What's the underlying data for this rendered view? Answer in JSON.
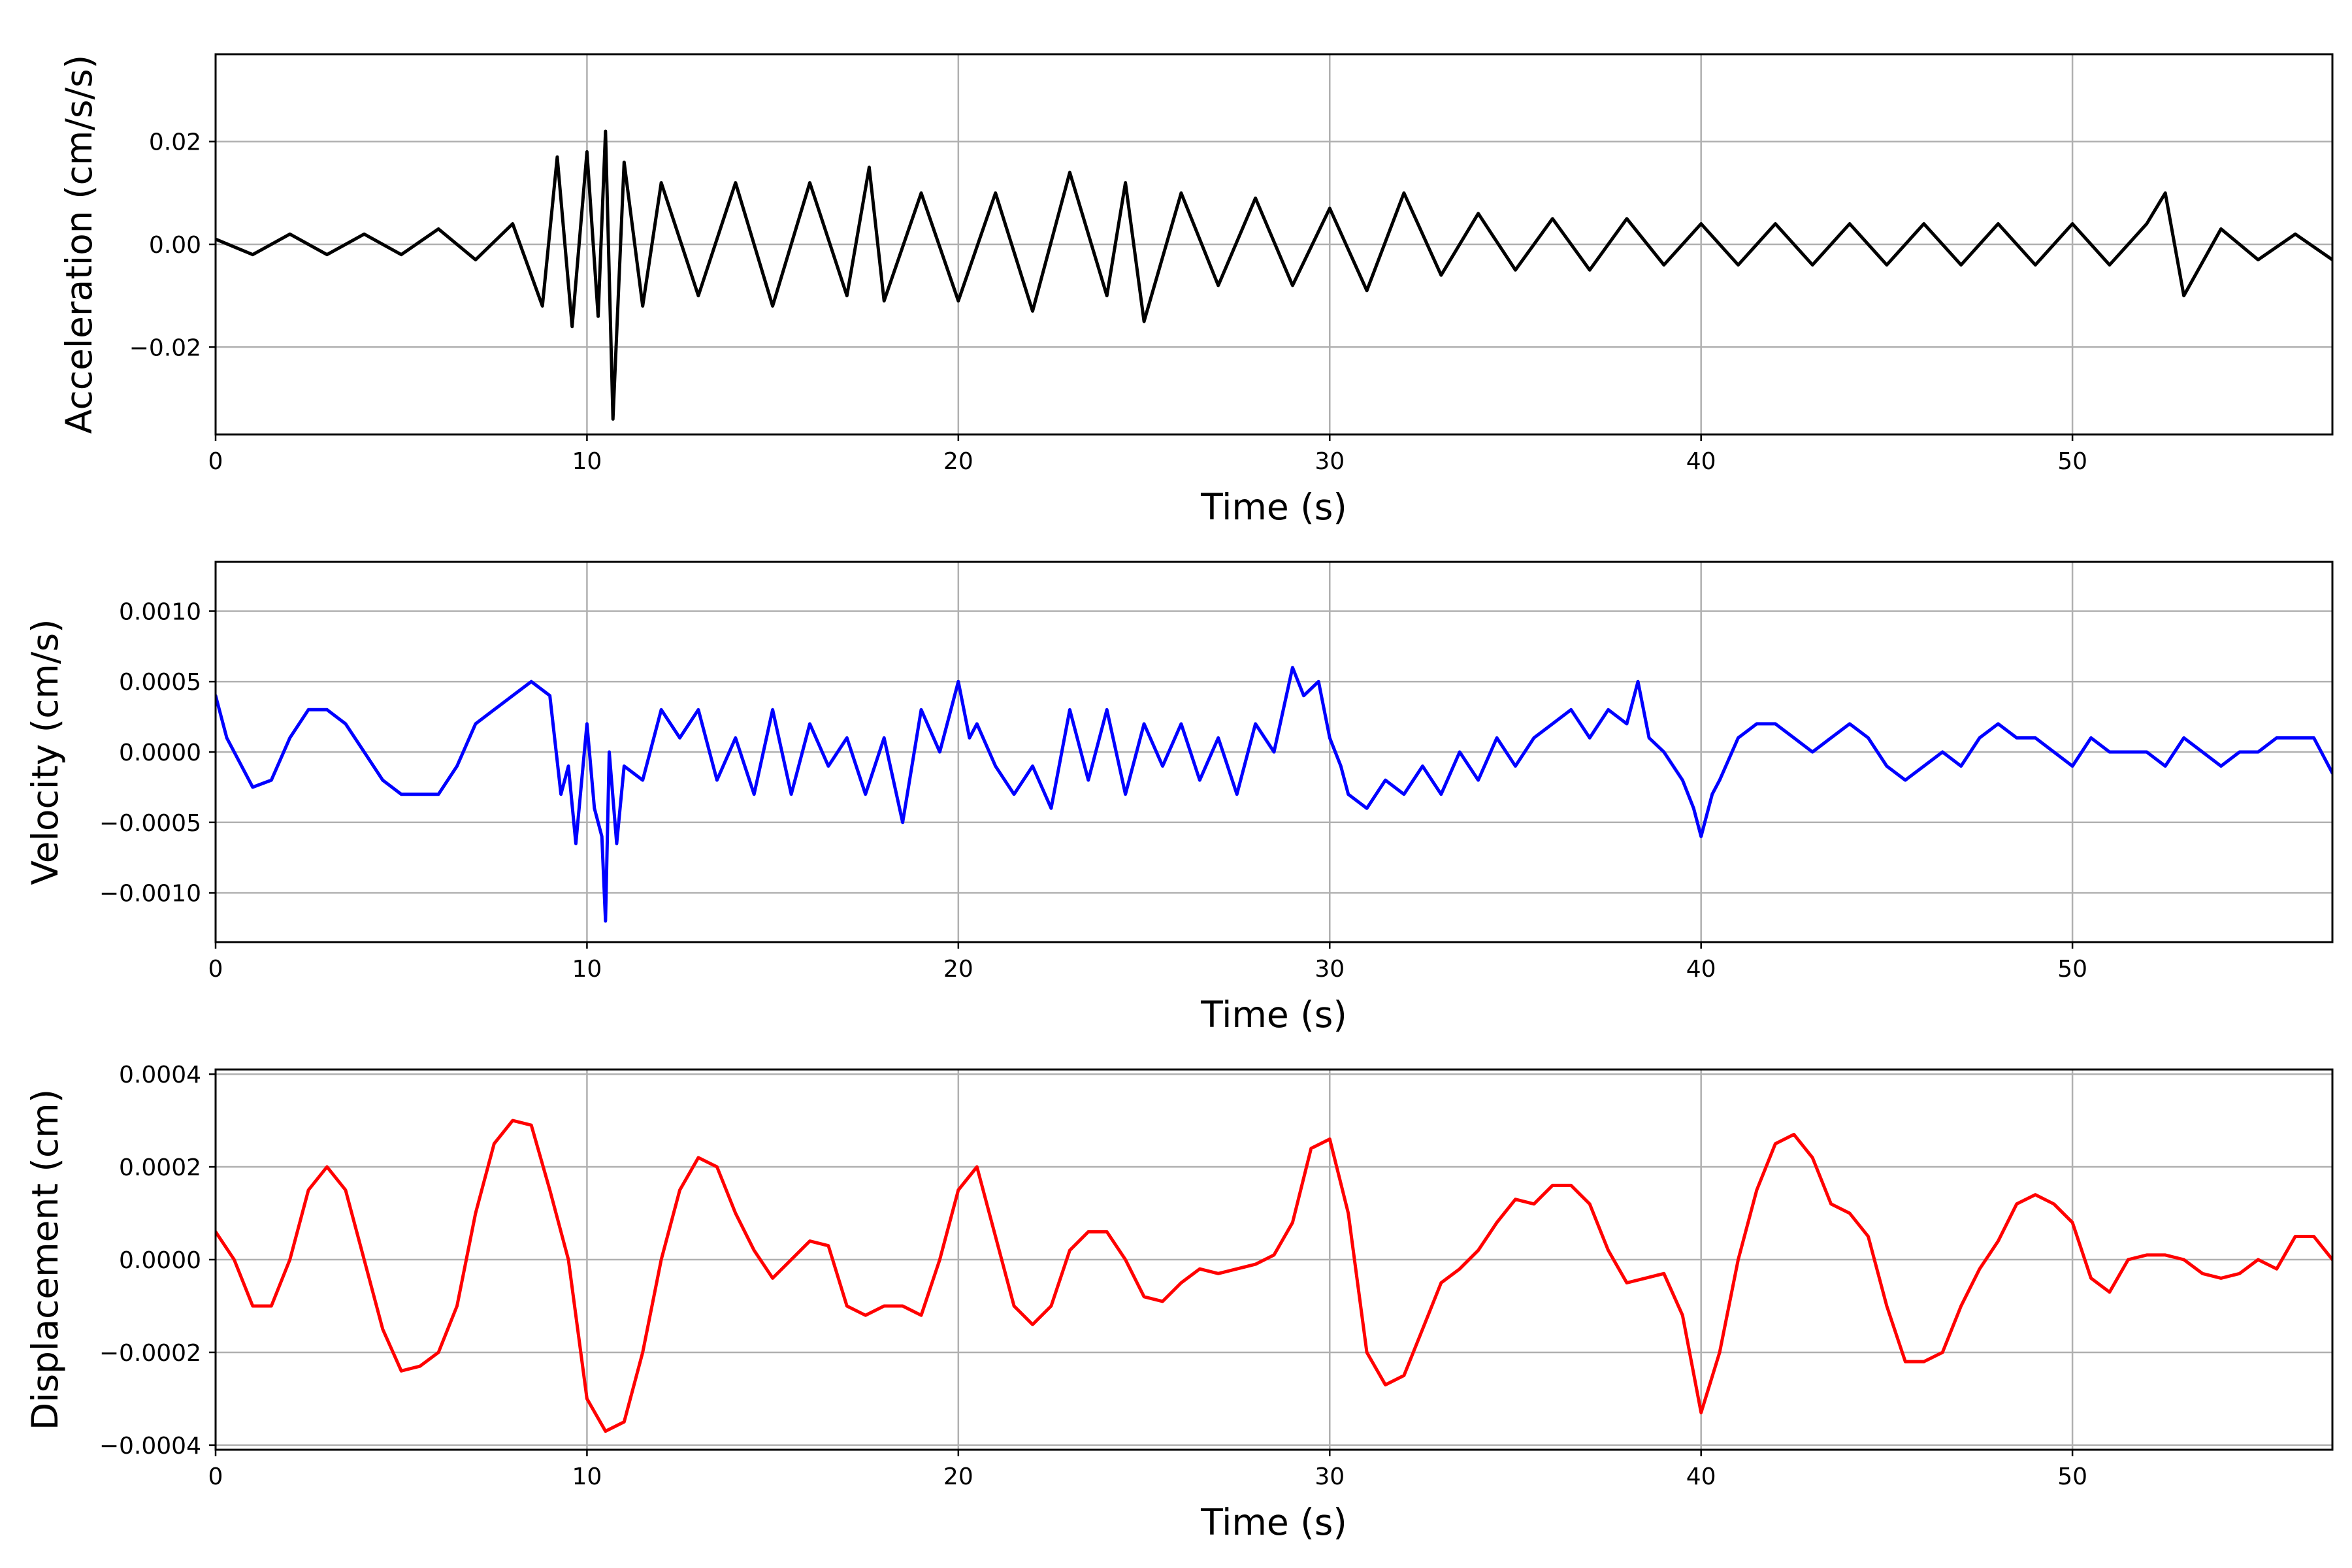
{
  "chart_data": [
    {
      "type": "line",
      "panel": "acceleration",
      "title": "",
      "xlabel": "Time (s)",
      "ylabel": "Acceleration (cm/s/s)",
      "xlim": [
        0,
        57
      ],
      "ylim": [
        -0.037,
        0.037
      ],
      "xticks": [
        0,
        10,
        20,
        30,
        40,
        50
      ],
      "xtick_labels": [
        "0",
        "10",
        "20",
        "30",
        "40",
        "50"
      ],
      "yticks": [
        -0.02,
        0.0,
        0.02
      ],
      "ytick_labels": [
        "−0.02",
        "0.00",
        "0.02"
      ],
      "grid": true,
      "color": "#000000",
      "series": [
        {
          "x": [
            0,
            1,
            2,
            3,
            4,
            5,
            6,
            7,
            8,
            8.8,
            9.2,
            9.6,
            10.0,
            10.3,
            10.5,
            10.7,
            11.0,
            11.5,
            12,
            13,
            14,
            15,
            16,
            17,
            17.6,
            18,
            19,
            20,
            21,
            22,
            23,
            24,
            24.5,
            25,
            26,
            27,
            28,
            29,
            30,
            31,
            32,
            33,
            34,
            35,
            36,
            37,
            38,
            39,
            40,
            41,
            42,
            43,
            44,
            45,
            46,
            47,
            48,
            49,
            50,
            51,
            52,
            52.5,
            53,
            54,
            55,
            56,
            57
          ],
          "y": [
            0.001,
            -0.002,
            0.002,
            -0.002,
            0.002,
            -0.002,
            0.003,
            -0.003,
            0.004,
            -0.012,
            0.017,
            -0.016,
            0.018,
            -0.014,
            0.022,
            -0.034,
            0.016,
            -0.012,
            0.012,
            -0.01,
            0.012,
            -0.012,
            0.012,
            -0.01,
            0.015,
            -0.011,
            0.01,
            -0.011,
            0.01,
            -0.013,
            0.014,
            -0.01,
            0.012,
            -0.015,
            0.01,
            -0.008,
            0.009,
            -0.008,
            0.007,
            -0.009,
            0.01,
            -0.006,
            0.006,
            -0.005,
            0.005,
            -0.005,
            0.005,
            -0.004,
            0.004,
            -0.004,
            0.004,
            -0.004,
            0.004,
            -0.004,
            0.004,
            -0.004,
            0.004,
            -0.004,
            0.004,
            -0.004,
            0.004,
            0.01,
            -0.01,
            0.003,
            -0.003,
            0.002,
            -0.003
          ]
        }
      ]
    },
    {
      "type": "line",
      "panel": "velocity",
      "title": "",
      "xlabel": "Time (s)",
      "ylabel": "Velocity (cm/s)",
      "xlim": [
        0,
        57
      ],
      "ylim": [
        -0.00135,
        0.00135
      ],
      "xticks": [
        0,
        10,
        20,
        30,
        40,
        50
      ],
      "xtick_labels": [
        "0",
        "10",
        "20",
        "30",
        "40",
        "50"
      ],
      "yticks": [
        -0.001,
        -0.0005,
        0.0,
        0.0005,
        0.001
      ],
      "ytick_labels": [
        "−0.0010",
        "−0.0005",
        "0.0000",
        "0.0005",
        "0.0010"
      ],
      "grid": true,
      "color": "#0000ff",
      "series": [
        {
          "x": [
            0,
            0.3,
            1,
            1.5,
            2,
            2.5,
            3,
            3.5,
            4,
            4.5,
            5,
            5.5,
            6,
            6.5,
            7,
            7.5,
            8,
            8.5,
            9,
            9.3,
            9.5,
            9.7,
            10.0,
            10.2,
            10.4,
            10.5,
            10.6,
            10.8,
            11.0,
            11.5,
            12,
            12.5,
            13,
            13.5,
            14,
            14.5,
            15,
            15.5,
            16,
            16.5,
            17,
            17.5,
            18,
            18.5,
            19,
            19.5,
            20,
            20.3,
            20.5,
            21,
            21.5,
            22,
            22.5,
            23,
            23.5,
            24,
            24.5,
            25,
            25.5,
            26,
            26.5,
            27,
            27.5,
            28,
            28.5,
            29,
            29.3,
            29.7,
            30,
            30.3,
            30.5,
            31,
            31.5,
            32,
            32.5,
            33,
            33.5,
            34,
            34.5,
            35,
            35.5,
            36,
            36.5,
            37,
            37.5,
            38,
            38.3,
            38.6,
            39,
            39.5,
            39.8,
            40,
            40.3,
            40.5,
            41,
            41.5,
            42,
            42.5,
            43,
            43.5,
            44,
            44.5,
            45,
            45.5,
            46,
            46.5,
            47,
            47.5,
            48,
            48.5,
            49,
            49.5,
            50,
            50.5,
            51,
            51.5,
            52,
            52.5,
            53,
            53.5,
            54,
            54.5,
            55,
            55.5,
            56,
            56.5,
            57
          ],
          "y": [
            0.0004,
            0.0001,
            -0.00025,
            -0.0002,
            0.0001,
            0.0003,
            0.0003,
            0.0002,
            0.0,
            -0.0002,
            -0.0003,
            -0.0003,
            -0.0003,
            -0.0001,
            0.0002,
            0.0003,
            0.0004,
            0.0005,
            0.0004,
            -0.0003,
            -0.0001,
            -0.00065,
            0.0002,
            -0.0004,
            -0.0006,
            -0.0012,
            0.0,
            -0.00065,
            -0.0001,
            -0.0002,
            0.0003,
            0.0001,
            0.0003,
            -0.0002,
            0.0001,
            -0.0003,
            0.0003,
            -0.0003,
            0.0002,
            -0.0001,
            0.0001,
            -0.0003,
            0.0001,
            -0.0005,
            0.0003,
            0.0,
            0.0005,
            0.0001,
            0.0002,
            -0.0001,
            -0.0003,
            -0.0001,
            -0.0004,
            0.0003,
            -0.0002,
            0.0003,
            -0.0003,
            0.0002,
            -0.0001,
            0.0002,
            -0.0002,
            0.0001,
            -0.0003,
            0.0002,
            0.0,
            0.0006,
            0.0004,
            0.0005,
            0.0001,
            -0.0001,
            -0.0003,
            -0.0004,
            -0.0002,
            -0.0003,
            -0.0001,
            -0.0003,
            0.0,
            -0.0002,
            0.0001,
            -0.0001,
            0.0001,
            0.0002,
            0.0003,
            0.0001,
            0.0003,
            0.0002,
            0.0005,
            0.0001,
            0.0,
            -0.0002,
            -0.0004,
            -0.0006,
            -0.0003,
            -0.0002,
            0.0001,
            0.0002,
            0.0002,
            0.0001,
            0.0,
            0.0001,
            0.0002,
            0.0001,
            -0.0001,
            -0.0002,
            -0.0001,
            0.0,
            -0.0001,
            0.0001,
            0.0002,
            0.0001,
            0.0001,
            0.0,
            -0.0001,
            0.0001,
            0.0,
            0.0,
            0.0,
            -0.0001,
            0.0001,
            0.0,
            -0.0001,
            0.0,
            0.0,
            0.0001,
            0.0001,
            0.0001,
            -0.00015
          ]
        }
      ]
    },
    {
      "type": "line",
      "panel": "displacement",
      "title": "",
      "xlabel": "Time (s)",
      "ylabel": "Displacement (cm)",
      "xlim": [
        0,
        57
      ],
      "ylim": [
        -0.00041,
        0.00041
      ],
      "xticks": [
        0,
        10,
        20,
        30,
        40,
        50
      ],
      "xtick_labels": [
        "0",
        "10",
        "20",
        "30",
        "40",
        "50"
      ],
      "yticks": [
        -0.0004,
        -0.0002,
        0.0,
        0.0002,
        0.0004
      ],
      "ytick_labels": [
        "−0.0004",
        "−0.0002",
        "0.0000",
        "0.0002",
        "0.0004"
      ],
      "grid": true,
      "color": "#ff0000",
      "series": [
        {
          "x": [
            0,
            0.5,
            1,
            1.5,
            2,
            2.5,
            3,
            3.5,
            4,
            4.5,
            5,
            5.5,
            6,
            6.5,
            7,
            7.5,
            8,
            8.5,
            9,
            9.5,
            10,
            10.5,
            11,
            11.5,
            12,
            12.5,
            13,
            13.5,
            14,
            14.5,
            15,
            15.5,
            16,
            16.5,
            17,
            17.5,
            18,
            18.5,
            19,
            19.5,
            20,
            20.5,
            21,
            21.5,
            22,
            22.5,
            23,
            23.5,
            24,
            24.5,
            25,
            25.5,
            26,
            26.5,
            27,
            27.5,
            28,
            28.5,
            29,
            29.5,
            30,
            30.5,
            31,
            31.5,
            32,
            32.5,
            33,
            33.5,
            34,
            34.5,
            35,
            35.5,
            36,
            36.5,
            37,
            37.5,
            38,
            38.5,
            39,
            39.5,
            40,
            40.5,
            41,
            41.5,
            42,
            42.5,
            43,
            43.5,
            44,
            44.5,
            45,
            45.5,
            46,
            46.5,
            47,
            47.5,
            48,
            48.5,
            49,
            49.5,
            50,
            50.5,
            51,
            51.5,
            52,
            52.5,
            53,
            53.5,
            54,
            54.5,
            55,
            55.5,
            56,
            56.5,
            57
          ],
          "y": [
            6e-05,
            0.0,
            -0.0001,
            -0.0001,
            0.0,
            0.00015,
            0.0002,
            0.00015,
            0.0,
            -0.00015,
            -0.00024,
            -0.00023,
            -0.0002,
            -0.0001,
            0.0001,
            0.00025,
            0.0003,
            0.00029,
            0.00015,
            0.0,
            -0.0003,
            -0.00037,
            -0.00035,
            -0.0002,
            0.0,
            0.00015,
            0.00022,
            0.0002,
            0.0001,
            2e-05,
            -4e-05,
            0.0,
            4e-05,
            3e-05,
            -0.0001,
            -0.00012,
            -0.0001,
            -0.0001,
            -0.00012,
            0.0,
            0.00015,
            0.0002,
            5e-05,
            -0.0001,
            -0.00014,
            -0.0001,
            2e-05,
            6e-05,
            6e-05,
            0.0,
            -8e-05,
            -9e-05,
            -5e-05,
            -2e-05,
            -3e-05,
            -2e-05,
            -1e-05,
            1e-05,
            8e-05,
            0.00024,
            0.00026,
            0.0001,
            -0.0002,
            -0.00027,
            -0.00025,
            -0.00015,
            -5e-05,
            -2e-05,
            2e-05,
            8e-05,
            0.00013,
            0.00012,
            0.00016,
            0.00016,
            0.00012,
            2e-05,
            -5e-05,
            -4e-05,
            -3e-05,
            -0.00012,
            -0.00033,
            -0.0002,
            0.0,
            0.00015,
            0.00025,
            0.00027,
            0.00022,
            0.00012,
            0.0001,
            5e-05,
            -0.0001,
            -0.00022,
            -0.00022,
            -0.0002,
            -0.0001,
            -2e-05,
            4e-05,
            0.00012,
            0.00014,
            0.00012,
            8e-05,
            -4e-05,
            -7e-05,
            0.0,
            1e-05,
            1e-05,
            0.0,
            -3e-05,
            -4e-05,
            -3e-05,
            0.0,
            -2e-05,
            5e-05,
            5e-05,
            0.0
          ]
        }
      ]
    }
  ]
}
